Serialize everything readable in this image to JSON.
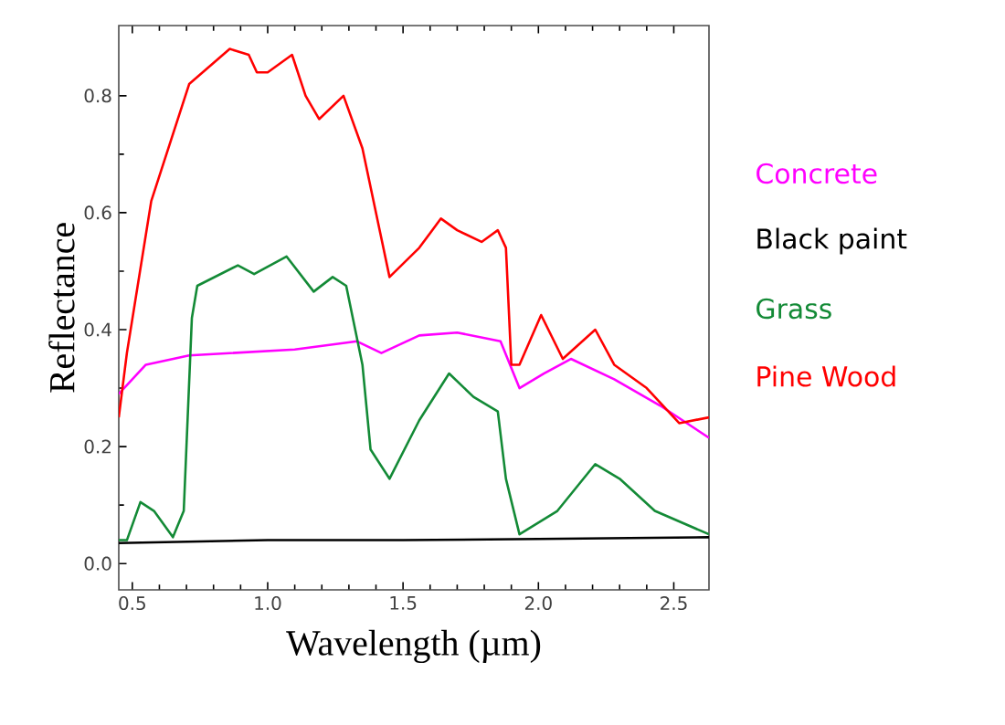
{
  "chart_data": {
    "type": "line",
    "xlabel": "Wavelength (µm)",
    "ylabel": "Reflectance",
    "xlim": [
      0.45,
      2.63
    ],
    "ylim": [
      -0.045,
      0.92
    ],
    "xticks": [
      0.5,
      {
        "value": 1.0,
        "label": "1.0"
      },
      1.5,
      {
        "value": 2.0,
        "label": "2.0"
      },
      2.5
    ],
    "yticks": [
      {
        "value": 0.0,
        "label": "0.0"
      },
      0.2,
      0.4,
      0.6,
      0.8
    ],
    "legend": "right",
    "marker": "none",
    "line_style": "solid",
    "grid": false,
    "series": [
      {
        "name": "Concrete",
        "color": "#ff00ff",
        "x": [
          0.45,
          0.55,
          0.71,
          1.1,
          1.33,
          1.42,
          1.56,
          1.7,
          1.86,
          1.93,
          2.02,
          2.12,
          2.28,
          2.45,
          2.63
        ],
        "values": [
          0.29,
          0.34,
          0.356,
          0.366,
          0.38,
          0.36,
          0.39,
          0.395,
          0.38,
          0.3,
          0.325,
          0.35,
          0.315,
          0.27,
          0.215
        ]
      },
      {
        "name": "Black paint",
        "color": "#000000",
        "x": [
          0.45,
          1.0,
          1.5,
          2.0,
          2.63
        ],
        "values": [
          0.035,
          0.04,
          0.04,
          0.042,
          0.045
        ]
      },
      {
        "name": "Grass",
        "color": "#138a36",
        "x": [
          0.45,
          0.48,
          0.53,
          0.58,
          0.65,
          0.69,
          0.72,
          0.74,
          0.89,
          0.95,
          1.07,
          1.17,
          1.24,
          1.29,
          1.35,
          1.38,
          1.45,
          1.56,
          1.67,
          1.76,
          1.85,
          1.88,
          1.93,
          2.07,
          2.21,
          2.3,
          2.43,
          2.63
        ],
        "values": [
          0.04,
          0.04,
          0.105,
          0.09,
          0.045,
          0.09,
          0.42,
          0.475,
          0.51,
          0.495,
          0.525,
          0.465,
          0.49,
          0.475,
          0.34,
          0.195,
          0.145,
          0.245,
          0.325,
          0.285,
          0.26,
          0.145,
          0.05,
          0.09,
          0.17,
          0.145,
          0.09,
          0.05
        ]
      },
      {
        "name": "Pine Wood",
        "color": "#ff0000",
        "x": [
          0.45,
          0.48,
          0.57,
          0.71,
          0.86,
          0.93,
          0.96,
          1.0,
          1.09,
          1.14,
          1.19,
          1.28,
          1.35,
          1.45,
          1.56,
          1.64,
          1.7,
          1.79,
          1.85,
          1.88,
          1.9,
          1.93,
          2.01,
          2.09,
          2.21,
          2.28,
          2.4,
          2.52,
          2.63
        ],
        "values": [
          0.25,
          0.36,
          0.62,
          0.82,
          0.88,
          0.87,
          0.84,
          0.84,
          0.87,
          0.8,
          0.76,
          0.8,
          0.71,
          0.49,
          0.54,
          0.59,
          0.57,
          0.55,
          0.57,
          0.54,
          0.34,
          0.34,
          0.425,
          0.35,
          0.4,
          0.34,
          0.3,
          0.24,
          0.25
        ]
      }
    ]
  }
}
